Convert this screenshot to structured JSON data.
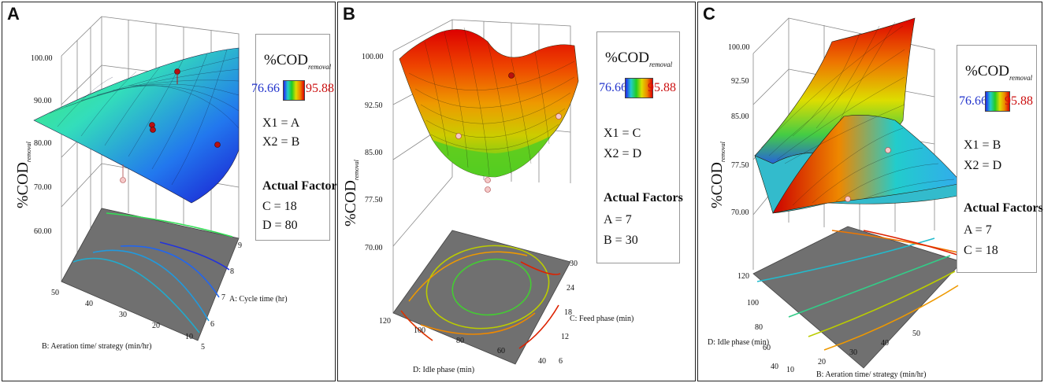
{
  "panels": [
    {
      "label": "A",
      "legend": {
        "title": "%COD",
        "sub": "removal",
        "min": "76.66",
        "max": "95.88",
        "x1": "X1 = A",
        "x2": "X2 = B",
        "actual": "Actual Factors",
        "f1": "C = 18",
        "f2": "D = 80"
      },
      "zlabel": "%COD",
      "zsub": "removal",
      "zticks": [
        "60.00",
        "70.00",
        "80.00",
        "90.00",
        "100.00"
      ],
      "xlabel": "A: Cycle time (hr)",
      "xticks": [
        "5",
        "6",
        "7",
        "8",
        "9"
      ],
      "ylabel": "B: Aeration time/ strategy (min/hr)",
      "yticks": [
        "50",
        "40",
        "30",
        "20",
        "10"
      ]
    },
    {
      "label": "B",
      "legend": {
        "title": "%COD",
        "sub": "removal",
        "min": "76.66",
        "max": "95.88",
        "x1": "X1 = C",
        "x2": "X2 = D",
        "actual": "Actual Factors",
        "f1": "A = 7",
        "f2": "B = 30"
      },
      "zlabel": "%COD",
      "zsub": "removal",
      "zticks": [
        "70.00",
        "77.50",
        "85.00",
        "92.50",
        "100.00"
      ],
      "xlabel": "C: Feed phase (min)",
      "xticks": [
        "6",
        "12",
        "18",
        "24",
        "30"
      ],
      "ylabel": "D: Idle phase (min)",
      "yticks": [
        "120",
        "100",
        "80",
        "60",
        "40"
      ]
    },
    {
      "label": "C",
      "legend": {
        "title": "%COD",
        "sub": "removal",
        "min": "76.66",
        "max": "95.88",
        "x1": "X1 = B",
        "x2": "X2 = D",
        "actual": "Actual Factors",
        "f1": "A = 7",
        "f2": "C = 18"
      },
      "zlabel": "%COD",
      "zsub": "removal",
      "zticks": [
        "70.00",
        "77.50",
        "85.00",
        "92.50",
        "100.00"
      ],
      "xlabel": "B: Aeration time/ strategy (min/hr)",
      "xticks": [
        "10",
        "20",
        "30",
        "40",
        "50"
      ],
      "ylabel": "D: Idle phase (min)",
      "yticks": [
        "120",
        "100",
        "80",
        "60",
        "40"
      ]
    }
  ],
  "chart_data": [
    {
      "type": "surface3d",
      "title": "A",
      "xlabel": "A: Cycle time (hr)",
      "ylabel": "B: Aeration time/ strategy (min/hr)",
      "zlabel": "%COD removal",
      "xlim": [
        5,
        9
      ],
      "ylim": [
        10,
        50
      ],
      "zlim": [
        60,
        100
      ],
      "color_range": [
        76.66,
        95.88
      ],
      "surface_corners": {
        "A5_B50": 86,
        "A9_B50": 88,
        "A5_B10": 78,
        "A9_B10": 76
      },
      "design_points_z": [
        95,
        87,
        85,
        80,
        68
      ]
    },
    {
      "type": "surface3d",
      "title": "B",
      "xlabel": "C: Feed phase (min)",
      "ylabel": "D: Idle phase (min)",
      "zlabel": "%COD removal",
      "xlim": [
        6,
        30
      ],
      "ylim": [
        40,
        120
      ],
      "zlim": [
        70,
        100
      ],
      "color_range": [
        76.66,
        95.88
      ],
      "surface_shape": "bowl (minimum near center ~81)",
      "design_points_z": [
        96,
        91,
        88,
        78,
        77
      ]
    },
    {
      "type": "surface3d",
      "title": "C",
      "xlabel": "B: Aeration time/ strategy (min/hr)",
      "ylabel": "D: Idle phase (min)",
      "zlabel": "%COD removal",
      "xlim": [
        10,
        50
      ],
      "ylim": [
        40,
        120
      ],
      "zlim": [
        70,
        100
      ],
      "color_range": [
        76.66,
        95.88
      ],
      "surface_shape": "saddle / twisted (max ~100 at back, min ~71 at left)",
      "design_points_z": [
        85,
        79
      ]
    }
  ]
}
